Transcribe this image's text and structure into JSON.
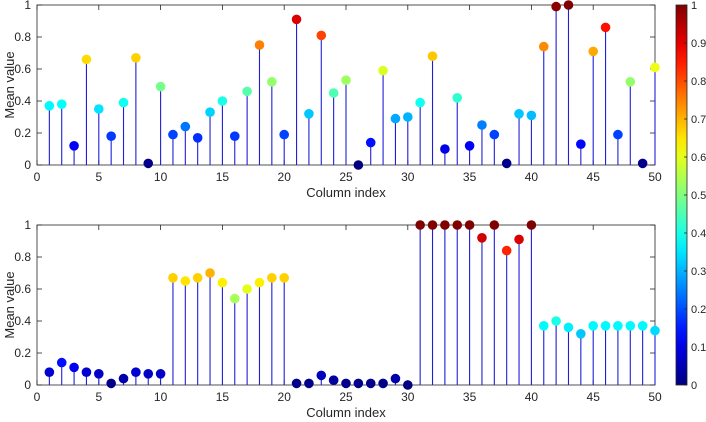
{
  "chart_data": [
    {
      "type": "stem",
      "title": "",
      "xlabel": "Column index",
      "ylabel": "Mean value",
      "xlim": [
        0,
        50
      ],
      "ylim": [
        0,
        1
      ],
      "xticks": [
        "0",
        "10",
        "15",
        "20",
        "25",
        "30",
        "35",
        "40",
        "45",
        "50"
      ],
      "xtick_values": [
        0,
        10,
        15,
        20,
        25,
        30,
        35,
        40,
        45,
        50
      ],
      "xtick_five": "5",
      "yticks": [
        "0",
        "0.2",
        "0.4",
        "0.6",
        "0.8",
        "1"
      ],
      "x": [
        1,
        2,
        3,
        4,
        5,
        6,
        7,
        8,
        9,
        10,
        11,
        12,
        13,
        14,
        15,
        16,
        17,
        18,
        19,
        20,
        21,
        22,
        23,
        24,
        25,
        26,
        27,
        28,
        29,
        30,
        31,
        32,
        33,
        34,
        35,
        36,
        37,
        38,
        39,
        40,
        41,
        42,
        43,
        44,
        45,
        46,
        47,
        48,
        49,
        50
      ],
      "values": [
        0.37,
        0.38,
        0.12,
        0.66,
        0.35,
        0.18,
        0.39,
        0.67,
        0.01,
        0.49,
        0.19,
        0.24,
        0.17,
        0.33,
        0.4,
        0.18,
        0.46,
        0.75,
        0.52,
        0.19,
        0.91,
        0.32,
        0.81,
        0.45,
        0.53,
        0.0,
        0.14,
        0.59,
        0.29,
        0.3,
        0.39,
        0.68,
        0.1,
        0.42,
        0.12,
        0.25,
        0.19,
        0.01,
        0.32,
        0.31,
        0.74,
        0.99,
        1.0,
        0.13,
        0.71,
        0.86,
        0.19,
        0.52,
        0.01,
        0.61
      ]
    },
    {
      "type": "stem",
      "title": "",
      "xlabel": "Column index",
      "ylabel": "Mean value",
      "xlim": [
        0,
        50
      ],
      "ylim": [
        0,
        1
      ],
      "xticks": [
        "0",
        "5",
        "10",
        "15",
        "20",
        "25",
        "30",
        "35",
        "40",
        "45",
        "50"
      ],
      "yticks": [
        "0",
        "0.2",
        "0.4",
        "0.6",
        "0.8",
        "1"
      ],
      "x": [
        1,
        2,
        3,
        4,
        5,
        6,
        7,
        8,
        9,
        10,
        11,
        12,
        13,
        14,
        15,
        16,
        17,
        18,
        19,
        20,
        21,
        22,
        23,
        24,
        25,
        26,
        27,
        28,
        29,
        30,
        31,
        32,
        33,
        34,
        35,
        36,
        37,
        38,
        39,
        40,
        41,
        42,
        43,
        44,
        45,
        46,
        47,
        48,
        49,
        50
      ],
      "values": [
        0.08,
        0.14,
        0.11,
        0.08,
        0.07,
        0.01,
        0.04,
        0.08,
        0.07,
        0.07,
        0.67,
        0.65,
        0.67,
        0.7,
        0.64,
        0.54,
        0.6,
        0.64,
        0.67,
        0.67,
        0.01,
        0.01,
        0.06,
        0.03,
        0.01,
        0.01,
        0.01,
        0.01,
        0.04,
        0.0,
        1.0,
        1.0,
        1.0,
        1.0,
        1.0,
        0.92,
        1.0,
        0.84,
        0.91,
        1.0,
        0.37,
        0.4,
        0.36,
        0.32,
        0.37,
        0.37,
        0.37,
        0.37,
        0.37,
        0.34
      ]
    }
  ],
  "colorbar": {
    "colormap": "jet",
    "range": [
      0,
      1
    ],
    "ticks": [
      "0",
      "0.1",
      "0.2",
      "0.3",
      "0.4",
      "0.5",
      "0.6",
      "0.7",
      "0.8",
      "0.9",
      "1"
    ]
  },
  "colors": {
    "stem": "#1f1fd9",
    "axis": "#262626"
  }
}
